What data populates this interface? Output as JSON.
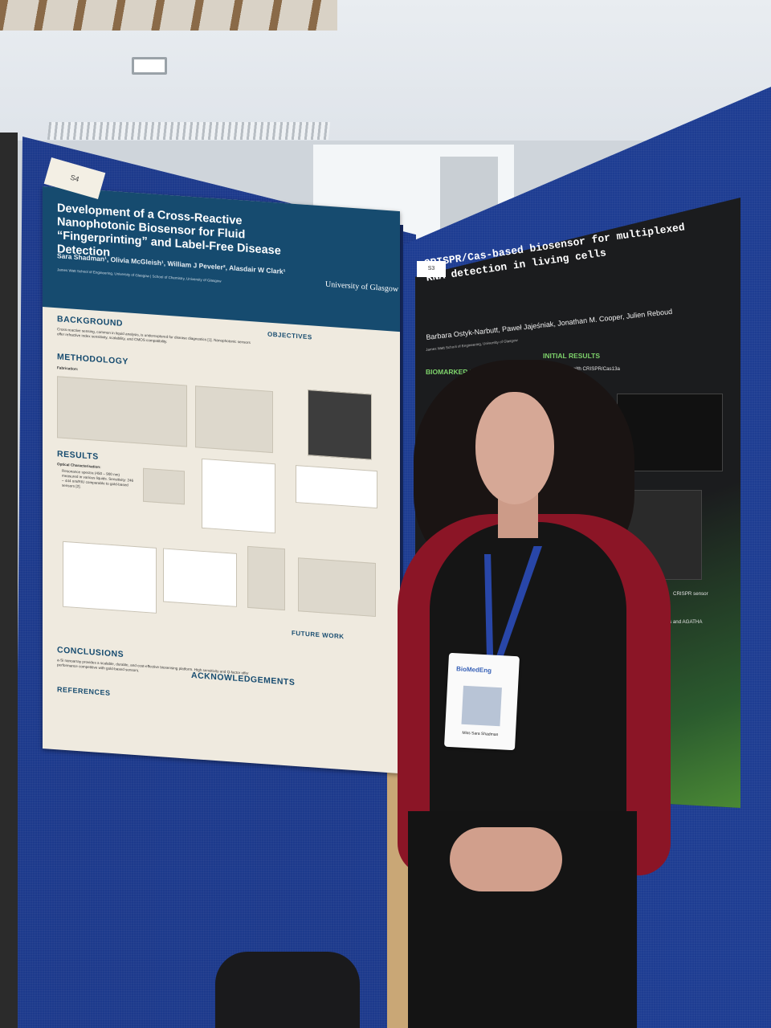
{
  "scene": "poster session",
  "left_poster": {
    "board_number": "S4",
    "title": "Development of a Cross-Reactive Nanophotonic Biosensor for Fluid “Fingerprinting” and Label-Free Disease Detection",
    "authors": "Sara Shadman¹, Olivia McGleish¹, William J Peveler², Alasdair W Clark¹",
    "institution": "James Watt School of Engineering, University of Glasgow | School of Chemistry, University of Glasgow",
    "logo": "University of Glasgow",
    "sections": [
      "BACKGROUND",
      "OBJECTIVES",
      "METHODOLOGY",
      "RESULTS",
      "CONCLUSIONS",
      "ACKNOWLEDGEMENTS",
      "REFERENCES",
      "FUTURE WORK"
    ],
    "fabrication": "Fabrication:",
    "optical": "Optical Characterisation:"
  },
  "right_poster": {
    "board_number": "S3",
    "title": "CRISPR/Cas-based biosensor for multiplexed RNA detection in living cells",
    "authors": "Barbara Ostyk-Narbutt, Paweł Jajeśniak, Jonathan M. Cooper, Julien Reboud",
    "institution": "James Watt School of Engineering, University of Glasgow",
    "sections": [
      "BIOMARKER DETECTION",
      "INITIAL RESULTS"
    ],
    "line1": "detection with CRISPR/Cas13a",
    "line2": "CRISPR sensor",
    "line3": "s and AGATHA"
  },
  "badge": {
    "event": "BioMedEng",
    "name": "Miss Sara Shadman"
  },
  "colors": {
    "board": "#1d3a8c",
    "left_header": "#164b6f",
    "right_poster": "#1b1c1e",
    "cardigan": "#8b1526"
  }
}
